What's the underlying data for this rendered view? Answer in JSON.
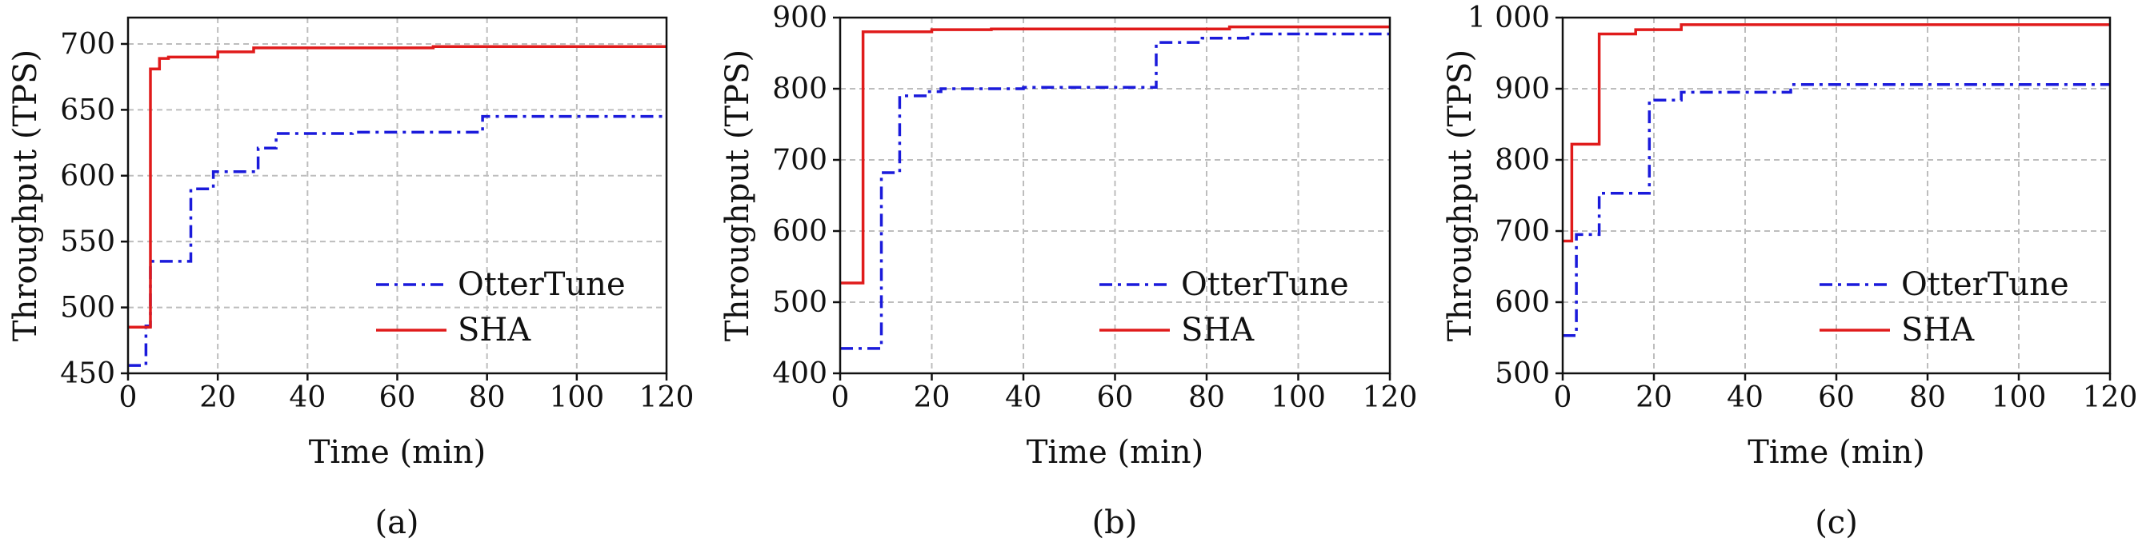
{
  "figure": {
    "colors": {
      "OtterTune": "#1a1adb",
      "SHA": "#e01b1b",
      "grid": "#bdbdbd"
    }
  },
  "chart_data": [
    {
      "type": "line",
      "caption": "(a)",
      "xlabel": "Time (min)",
      "ylabel": "Throughput (TPS)",
      "xlim": [
        0,
        120
      ],
      "ylim": [
        450,
        720
      ],
      "xticks": [
        0,
        20,
        40,
        60,
        80,
        100,
        120
      ],
      "xtick_labels": [
        "0",
        "20",
        "40",
        "60",
        "80",
        "100",
        "120"
      ],
      "yticks": [
        450,
        500,
        550,
        600,
        650,
        700
      ],
      "ytick_labels": [
        "450",
        "500",
        "550",
        "600",
        "650",
        "700"
      ],
      "grid": true,
      "legend_position": "lower-right",
      "series": [
        {
          "name": "OtterTune",
          "style": "dashdot",
          "color": "#1a1adb",
          "x": [
            0,
            4,
            4,
            5,
            5,
            14,
            14,
            19,
            19,
            29,
            29,
            33,
            33,
            50,
            50,
            79,
            79,
            120
          ],
          "y": [
            456,
            456,
            486,
            486,
            535,
            535,
            590,
            590,
            603,
            603,
            621,
            621,
            632,
            632,
            633,
            633,
            645,
            645
          ]
        },
        {
          "name": "SHA",
          "style": "solid",
          "color": "#e01b1b",
          "x": [
            0,
            5,
            5,
            7,
            7,
            9,
            9,
            20,
            20,
            28,
            28,
            68,
            68,
            120
          ],
          "y": [
            485,
            485,
            681,
            681,
            689,
            689,
            690,
            690,
            694,
            694,
            697,
            697,
            698,
            698
          ]
        }
      ]
    },
    {
      "type": "line",
      "caption": "(b)",
      "xlabel": "Time (min)",
      "ylabel": "Throughput (TPS)",
      "xlim": [
        0,
        120
      ],
      "ylim": [
        400,
        900
      ],
      "xticks": [
        0,
        20,
        40,
        60,
        80,
        100,
        120
      ],
      "xtick_labels": [
        "0",
        "20",
        "40",
        "60",
        "80",
        "100",
        "120"
      ],
      "yticks": [
        400,
        500,
        600,
        700,
        800,
        900
      ],
      "ytick_labels": [
        "400",
        "500",
        "600",
        "700",
        "800",
        "900"
      ],
      "grid": true,
      "legend_position": "lower-right",
      "series": [
        {
          "name": "OtterTune",
          "style": "dashdot",
          "color": "#1a1adb",
          "x": [
            0,
            9,
            9,
            13,
            13,
            19,
            19,
            22,
            22,
            40,
            40,
            69,
            69,
            79,
            79,
            89,
            89,
            120
          ],
          "y": [
            435,
            435,
            682,
            682,
            790,
            790,
            796,
            796,
            800,
            800,
            802,
            802,
            865,
            865,
            871,
            871,
            877,
            877
          ]
        },
        {
          "name": "SHA",
          "style": "solid",
          "color": "#e01b1b",
          "x": [
            0,
            5,
            5,
            20,
            20,
            33,
            33,
            85,
            85,
            120
          ],
          "y": [
            527,
            527,
            880,
            880,
            883,
            883,
            884,
            884,
            887,
            887
          ]
        }
      ]
    },
    {
      "type": "line",
      "caption": "(c)",
      "xlabel": "Time (min)",
      "ylabel": "Throughput (TPS)",
      "xlim": [
        0,
        120
      ],
      "ylim": [
        500,
        1000
      ],
      "xticks": [
        0,
        20,
        40,
        60,
        80,
        100,
        120
      ],
      "xtick_labels": [
        "0",
        "20",
        "40",
        "60",
        "80",
        "100",
        "120"
      ],
      "yticks": [
        500,
        600,
        700,
        800,
        900,
        1000
      ],
      "ytick_labels": [
        "500",
        "600",
        "700",
        "800",
        "900",
        "1 000"
      ],
      "grid": true,
      "legend_position": "lower-right",
      "series": [
        {
          "name": "OtterTune",
          "style": "dashdot",
          "color": "#1a1adb",
          "x": [
            0,
            3,
            3,
            6,
            6,
            8,
            8,
            19,
            19,
            26,
            26,
            50,
            50,
            120
          ],
          "y": [
            553,
            553,
            695,
            695,
            695,
            695,
            753,
            753,
            884,
            884,
            895,
            895,
            906,
            906
          ]
        },
        {
          "name": "SHA",
          "style": "solid",
          "color": "#e01b1b",
          "x": [
            0,
            2,
            2,
            8,
            8,
            16,
            16,
            26,
            26,
            120
          ],
          "y": [
            686,
            686,
            822,
            822,
            977,
            977,
            983,
            983,
            990,
            990
          ]
        }
      ]
    }
  ]
}
